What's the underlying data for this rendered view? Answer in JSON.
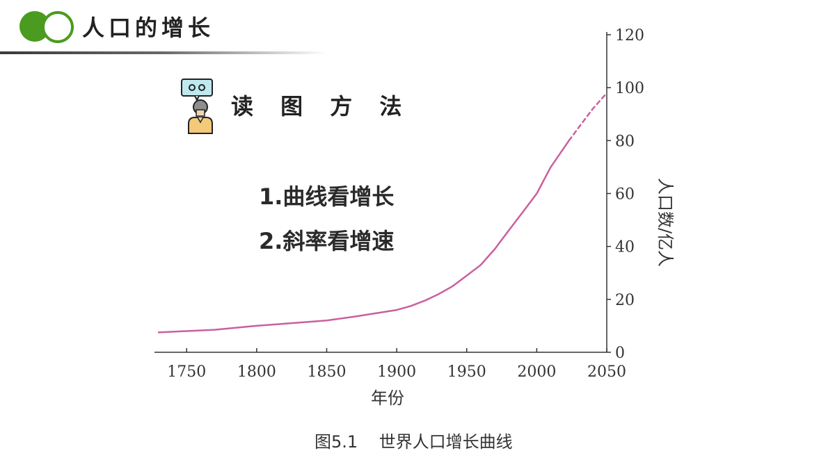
{
  "header": {
    "title": "人口的增长",
    "accent_color": "#4a9b1f"
  },
  "method": {
    "icon": "speaking-person-icon",
    "title": "读 图 方 法"
  },
  "points": [
    "1.曲线看增长",
    "2.斜率看增速"
  ],
  "caption": "图5.1    世界人口增长曲线",
  "chart_data": {
    "type": "line",
    "title": "",
    "xlabel": "年份",
    "ylabel": "人口数/亿人",
    "xlim": [
      1730,
      2050
    ],
    "ylim": [
      0,
      120
    ],
    "x_ticks": [
      1750,
      1800,
      1850,
      1900,
      1950,
      2000,
      2050
    ],
    "y_ticks": [
      0,
      20,
      40,
      60,
      80,
      100,
      120
    ],
    "y_axis_side": "right",
    "line_color": "#c9609e",
    "series": [
      {
        "style": "solid",
        "x": [
          1730,
          1750,
          1770,
          1800,
          1820,
          1850,
          1870,
          1900,
          1910,
          1920,
          1930,
          1940,
          1950,
          1960,
          1970,
          1980,
          1990,
          2000,
          2010,
          2023
        ],
        "y": [
          7.5,
          8,
          8.5,
          10,
          10.8,
          12,
          13.5,
          16,
          17.5,
          19.5,
          22,
          25,
          29,
          33,
          39,
          46,
          53,
          60,
          70,
          80
        ]
      },
      {
        "style": "dashed",
        "x": [
          2023,
          2030,
          2040,
          2050
        ],
        "y": [
          80,
          85,
          92,
          98
        ]
      }
    ]
  }
}
